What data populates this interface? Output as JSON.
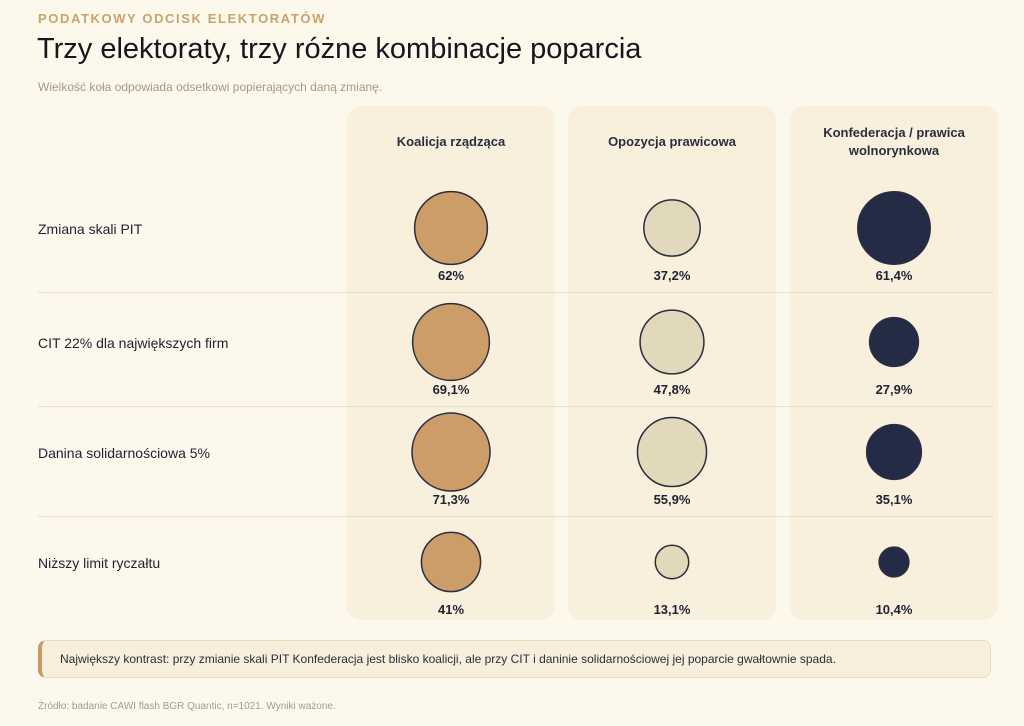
{
  "header": {
    "eyebrow": "PODATKOWY ODCISK ELEKTORATÓW",
    "title": "Trzy elektoraty, trzy różne kombinacje poparcia",
    "subtitle": "Wielkość koła odpowiada odsetkowi popierających daną zmianę."
  },
  "chart_data": {
    "type": "bubble-matrix",
    "columns": [
      "Koalicja rządząca",
      "Opozycja prawicowa",
      "Konfederacja / prawica wolnorynkowa"
    ],
    "rows": [
      "Zmiana skali PIT",
      "CIT 22% dla największych firm",
      "Danina solidarnościowa 5%",
      "Niższy limit ryczałtu"
    ],
    "values": [
      [
        62.0,
        37.2,
        61.4
      ],
      [
        69.1,
        47.8,
        27.9
      ],
      [
        71.3,
        55.9,
        35.1
      ],
      [
        41.0,
        13.1,
        10.4
      ]
    ],
    "labels": [
      [
        "62%",
        "37,2%",
        "61,4%"
      ],
      [
        "69,1%",
        "47,8%",
        "27,9%"
      ],
      [
        "71,3%",
        "55,9%",
        "35,1%"
      ],
      [
        "41%",
        "13,1%",
        "10,4%"
      ]
    ],
    "unit": "%",
    "column_colors": [
      "#cc9d68",
      "#e2d8bc",
      "#232b45"
    ],
    "bubble_stroke": "#2a2e3e"
  },
  "callout": {
    "text": "Największy kontrast: przy zmianie skali PIT Konfederacja jest blisko koalicji, ale przy CIT i daninie solidarnościowej jej poparcie gwałtownie spada."
  },
  "footer": {
    "source": "Źródło: badanie CAWI flash BGR Quantic, n=1021. Wyniki ważone."
  }
}
